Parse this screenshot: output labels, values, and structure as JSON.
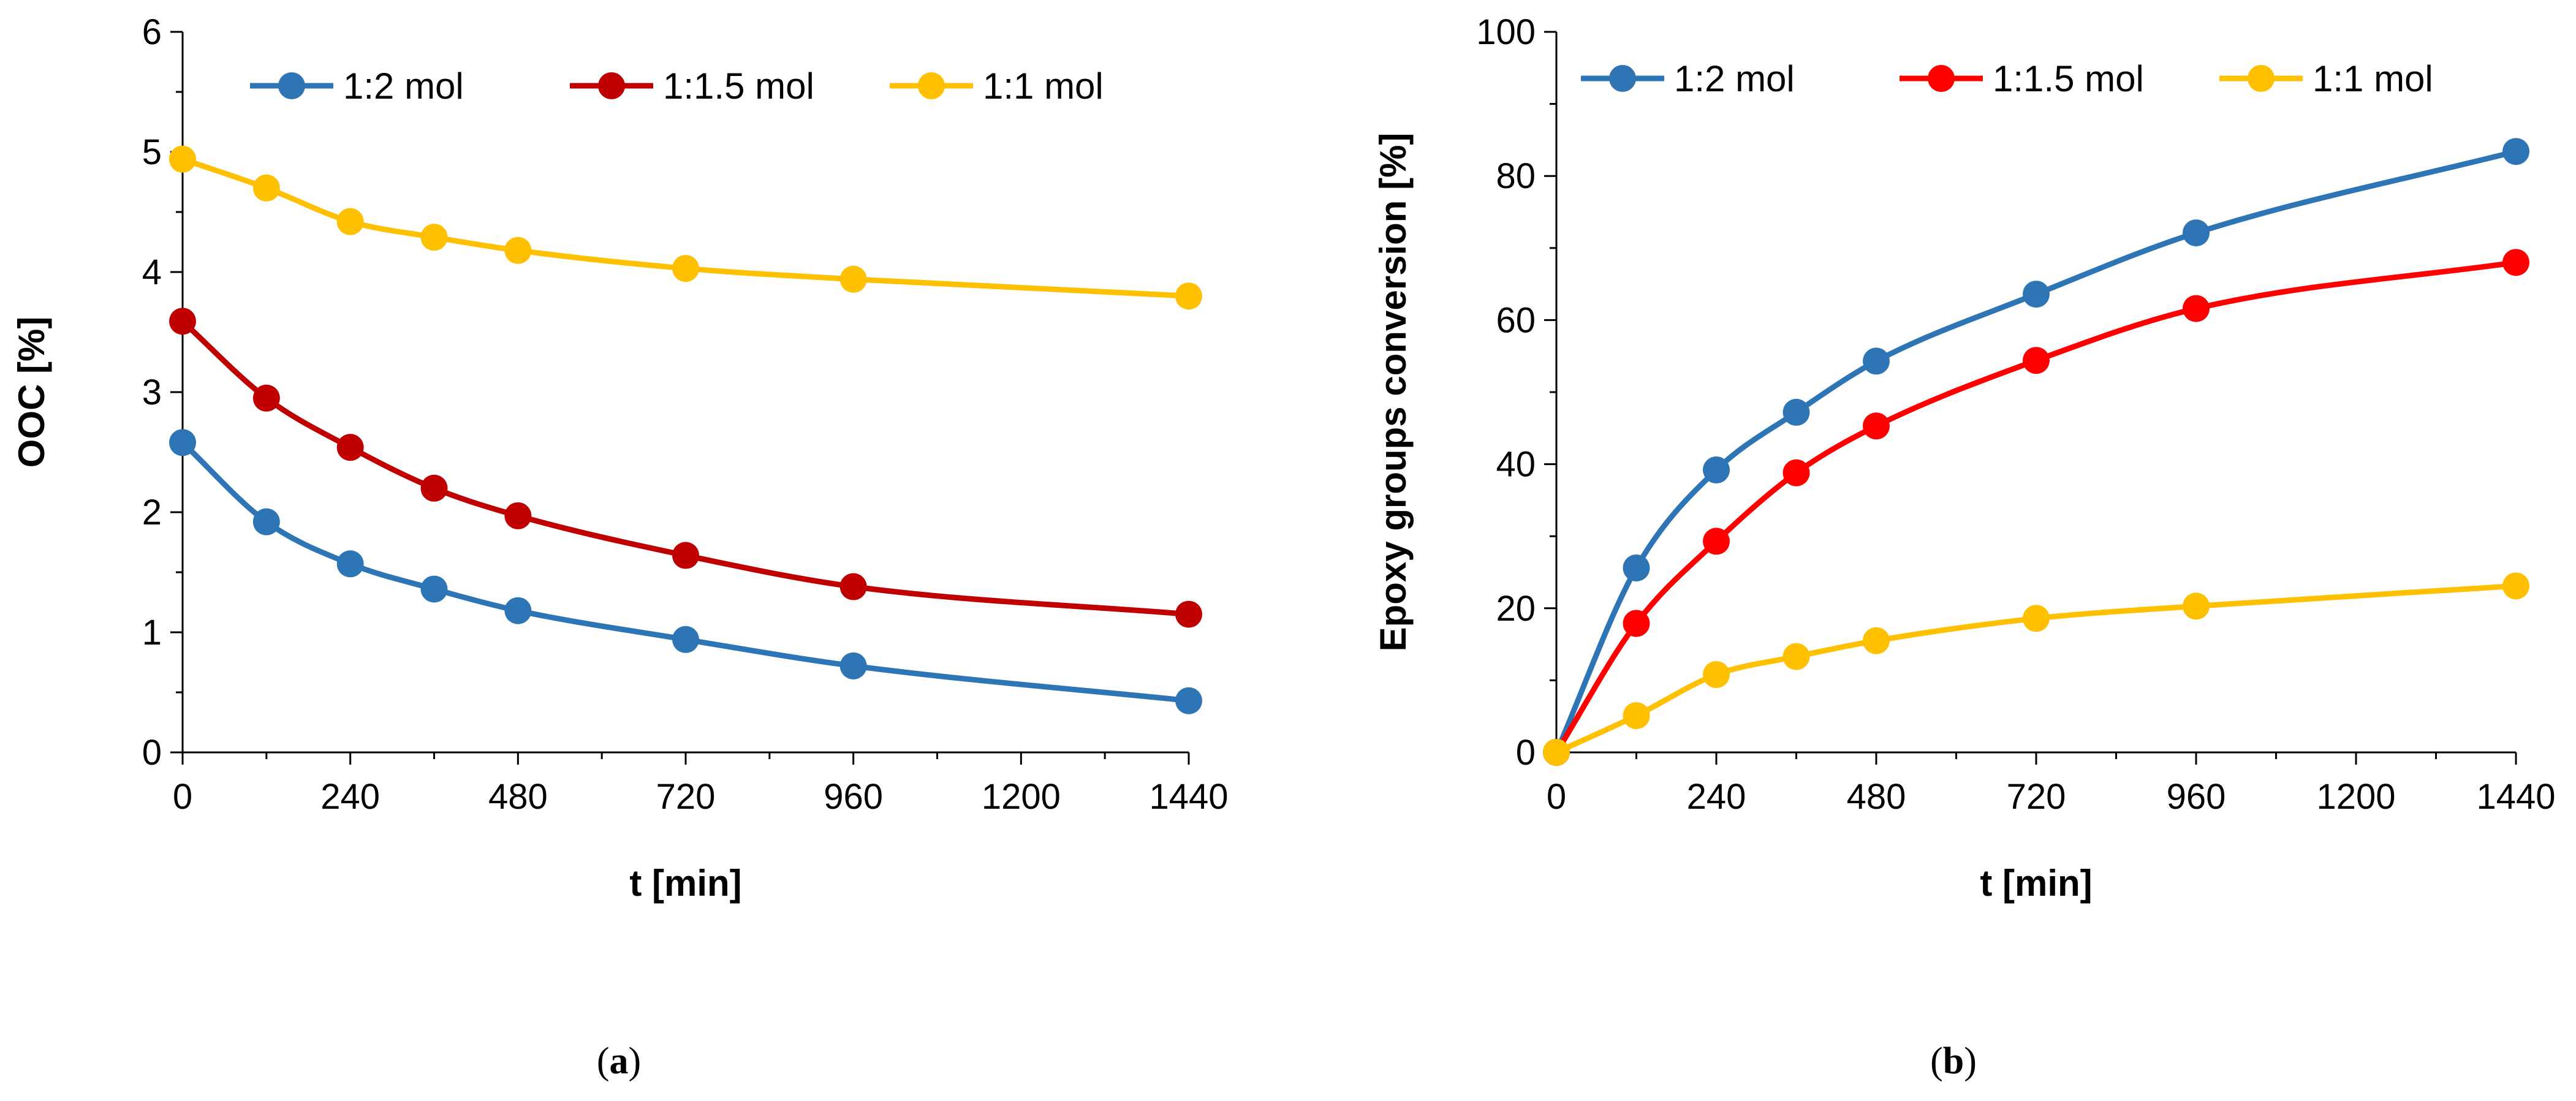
{
  "chart_data": [
    {
      "id": "a",
      "type": "line",
      "caption_letter": "a",
      "xlabel": "t [min]",
      "ylabel": "OOC [%]",
      "xlim": [
        0,
        1440
      ],
      "ylim": [
        0,
        6
      ],
      "xticks": [
        0,
        240,
        480,
        720,
        960,
        1200,
        1440
      ],
      "yticks": [
        0,
        1,
        2,
        3,
        4,
        5,
        6
      ],
      "grid": false,
      "legend_position": "top",
      "x": [
        0,
        120,
        240,
        360,
        480,
        720,
        960,
        1440
      ],
      "series": [
        {
          "name": "1:2 mol",
          "color": "#2E75B6",
          "values": [
            2.58,
            1.92,
            1.57,
            1.36,
            1.18,
            0.94,
            0.72,
            0.43
          ]
        },
        {
          "name": "1:1.5 mol",
          "color": "#C00000",
          "values": [
            3.59,
            2.95,
            2.54,
            2.2,
            1.97,
            1.64,
            1.38,
            1.15
          ]
        },
        {
          "name": "1:1 mol",
          "color": "#FFC000",
          "values": [
            4.94,
            4.7,
            4.42,
            4.29,
            4.18,
            4.03,
            3.94,
            3.8
          ]
        }
      ]
    },
    {
      "id": "b",
      "type": "line",
      "caption_letter": "b",
      "xlabel": "t [min]",
      "ylabel": "Epoxy groups conversion [%]",
      "xlim": [
        0,
        1440
      ],
      "ylim": [
        0,
        100
      ],
      "xticks": [
        0,
        240,
        480,
        720,
        960,
        1200,
        1440
      ],
      "yticks": [
        0,
        20,
        40,
        60,
        80,
        100
      ],
      "grid": false,
      "legend_position": "top",
      "x": [
        0,
        120,
        240,
        360,
        480,
        720,
        960,
        1440
      ],
      "series": [
        {
          "name": "1:2 mol",
          "color": "#2E75B6",
          "values": [
            0,
            25.6,
            39.2,
            47.2,
            54.3,
            63.6,
            72.1,
            83.4
          ]
        },
        {
          "name": "1:1.5 mol",
          "color": "#FF0000",
          "values": [
            0,
            17.9,
            29.3,
            38.8,
            45.3,
            54.4,
            61.6,
            68.0
          ]
        },
        {
          "name": "1:1 mol",
          "color": "#FFC000",
          "values": [
            0,
            5.1,
            10.8,
            13.3,
            15.5,
            18.6,
            20.3,
            23.1
          ]
        }
      ]
    }
  ]
}
